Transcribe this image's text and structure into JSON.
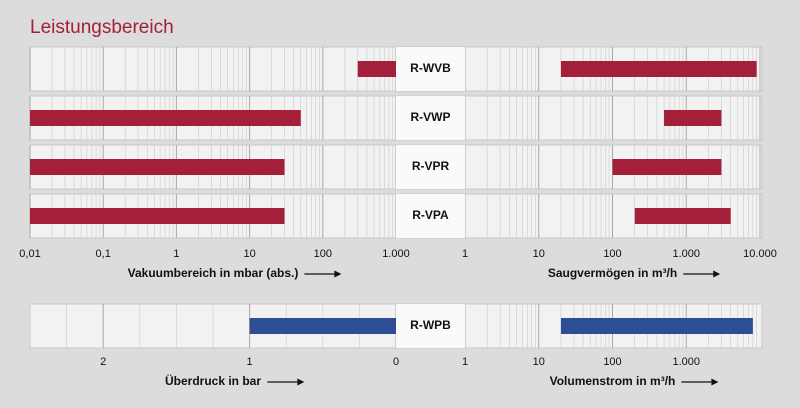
{
  "chart_data": {
    "type": "range-bar",
    "title": "Leistungsbereich",
    "panels": [
      {
        "color": "#a31f3a",
        "rows": [
          {
            "label": "R-WVB",
            "left": [
              300,
              1000
            ],
            "right": [
              20,
              9000
            ]
          },
          {
            "label": "R-VWP",
            "left": [
              0.01,
              50
            ],
            "right": [
              500,
              3000
            ]
          },
          {
            "label": "R-VPR",
            "left": [
              0.01,
              30
            ],
            "right": [
              100,
              3000
            ]
          },
          {
            "label": "R-VPA",
            "left": [
              0.01,
              30
            ],
            "right": [
              200,
              4000
            ]
          }
        ],
        "left_axis": {
          "label": "Vakuumbereich in mbar (abs.)",
          "log": true,
          "xlim": [
            0.01,
            1000
          ],
          "xticks": [
            {
              "value": 0.01,
              "label": "0,01"
            },
            {
              "value": 0.1,
              "label": "0,1"
            },
            1,
            10,
            100,
            {
              "value": 1000,
              "label": "1.000"
            }
          ]
        },
        "right_axis": {
          "label": "Saugvermögen in m³/h",
          "log": true,
          "xlim": [
            1,
            10000
          ],
          "xticks": [
            1,
            10,
            100,
            {
              "value": 1000,
              "label": "1.000"
            },
            {
              "value": 10000,
              "label": "10.000"
            }
          ]
        }
      },
      {
        "color": "#2d4e95",
        "rows": [
          {
            "label": "R-WPB",
            "left": [
              1,
              0
            ],
            "right": [
              20,
              8000
            ]
          }
        ],
        "left_axis": {
          "label": "Überdruck in bar",
          "log": false,
          "xlim": [
            2.5,
            0
          ],
          "xticks": [
            2,
            1,
            0
          ]
        },
        "right_axis": {
          "label": "Volumenstrom in m³/h",
          "log": true,
          "xlim": [
            1,
            10000
          ],
          "xticks": [
            1,
            10,
            100,
            {
              "value": 1000,
              "label": "1.000"
            }
          ]
        }
      }
    ]
  }
}
